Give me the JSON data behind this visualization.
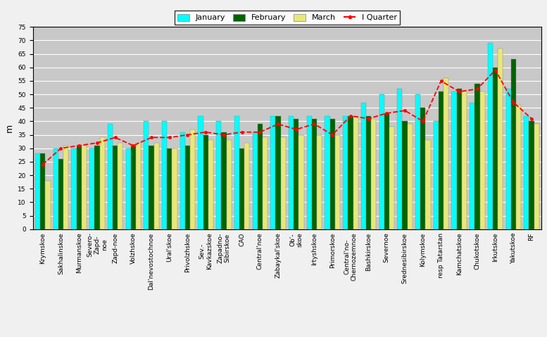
{
  "categories": [
    "Krymskoe",
    "Sakhalinskoe",
    "Murmanskoe",
    "Severo-\nZapd-\nnoe",
    "Zapd-noe",
    "Volzhskoe",
    "Dal'nevostochnoe",
    "Ural'skoe",
    "Privolzhskoe",
    "Sev.-\nKavkazskoe",
    "Zapadno-\nSibirskoe",
    "CAO",
    "Central'noe",
    "Zabaykal'skoe",
    "Ob'-\nskoe",
    "Irtyshskoe",
    "Primorskoe",
    "Central'no-\nChernozemnoe",
    "Bashkirskoe",
    "Severnoe",
    "Srednesibirskoe",
    "Kolymskoe",
    "resp Tatarstan",
    "Kamchatskoe",
    "Chukotskoe",
    "Irkutskoe",
    "Yakutskoe",
    "RF"
  ],
  "january": [
    28,
    30,
    30,
    30,
    39,
    30,
    40,
    40,
    36,
    42,
    40,
    42,
    36,
    42,
    42,
    42,
    42,
    42,
    47,
    50,
    52,
    50,
    40,
    51,
    47,
    69,
    52,
    42
  ],
  "february": [
    28,
    26,
    31,
    31,
    31,
    31,
    31,
    30,
    31,
    35,
    36,
    30,
    39,
    42,
    41,
    41,
    41,
    42,
    42,
    43,
    40,
    45,
    51,
    52,
    54,
    60,
    63,
    40
  ],
  "march": [
    18,
    31,
    31,
    34,
    32,
    32,
    32,
    30,
    37,
    33,
    33,
    32,
    34,
    34,
    35,
    35,
    35,
    42,
    41,
    38,
    39,
    33,
    56,
    51,
    51,
    67,
    46,
    39
  ],
  "quarter": [
    24,
    30,
    31,
    32,
    34,
    31,
    34,
    34,
    35,
    36,
    35,
    36,
    36,
    39,
    37,
    39,
    35,
    42,
    41,
    43,
    44,
    40,
    55,
    51,
    52,
    59,
    47,
    41
  ],
  "bar_colors": [
    "#00ffff",
    "#006400",
    "#e8e878"
  ],
  "bar_edgecolor": "#888888",
  "line_color": "#ff0000",
  "bg_color": "#bebebe",
  "plot_bg": "#c8c8c8",
  "ylabel": "m",
  "ylim": [
    0,
    75
  ],
  "yticks": [
    0,
    5,
    10,
    15,
    20,
    25,
    30,
    35,
    40,
    45,
    50,
    55,
    60,
    65,
    70,
    75
  ],
  "legend_labels": [
    "January",
    "February",
    "March",
    "I Quarter"
  ],
  "tick_fontsize": 6.5,
  "ylabel_fontsize": 9,
  "legend_fontsize": 8
}
